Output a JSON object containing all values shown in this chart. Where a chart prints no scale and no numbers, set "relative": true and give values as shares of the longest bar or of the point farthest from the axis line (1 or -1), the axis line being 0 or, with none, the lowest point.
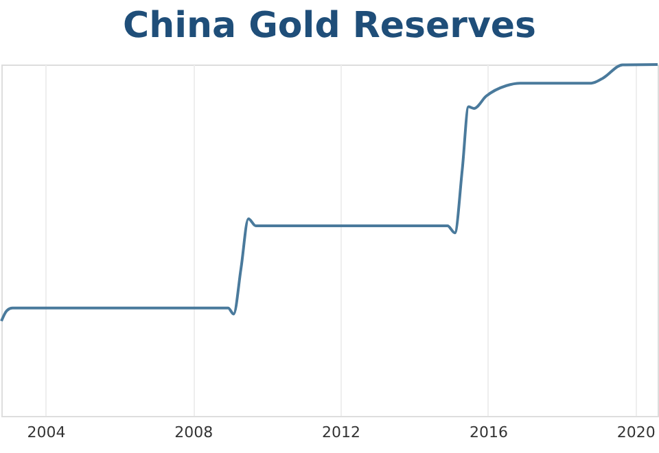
{
  "chart_data": {
    "type": "line",
    "title": "China Gold Reserves",
    "relative": true,
    "xlim": [
      2002.8,
      2020.6
    ],
    "xticks": [
      2004,
      2008,
      2012,
      2016,
      2020
    ],
    "grid": "x",
    "marker": "none",
    "line_style": "solid",
    "x": [
      2002.8,
      2002.95,
      2003.1,
      2005,
      2008.95,
      2009.1,
      2009.3,
      2009.5,
      2009.7,
      2012,
      2014.9,
      2015.1,
      2015.3,
      2015.47,
      2015.62,
      2015.95,
      2016.5,
      2016.87,
      2018,
      2018.8,
      2019.1,
      2019.65,
      2020.6
    ],
    "series": [
      {
        "color": "#4a7a9c",
        "values": [
          0.27,
          0.3,
          0.307,
          0.307,
          0.307,
          0.29,
          0.42,
          0.561,
          0.541,
          0.541,
          0.541,
          0.521,
          0.7,
          0.88,
          0.875,
          0.91,
          0.94,
          0.947,
          0.947,
          0.947,
          0.96,
          0.999,
          1.0
        ]
      }
    ]
  }
}
